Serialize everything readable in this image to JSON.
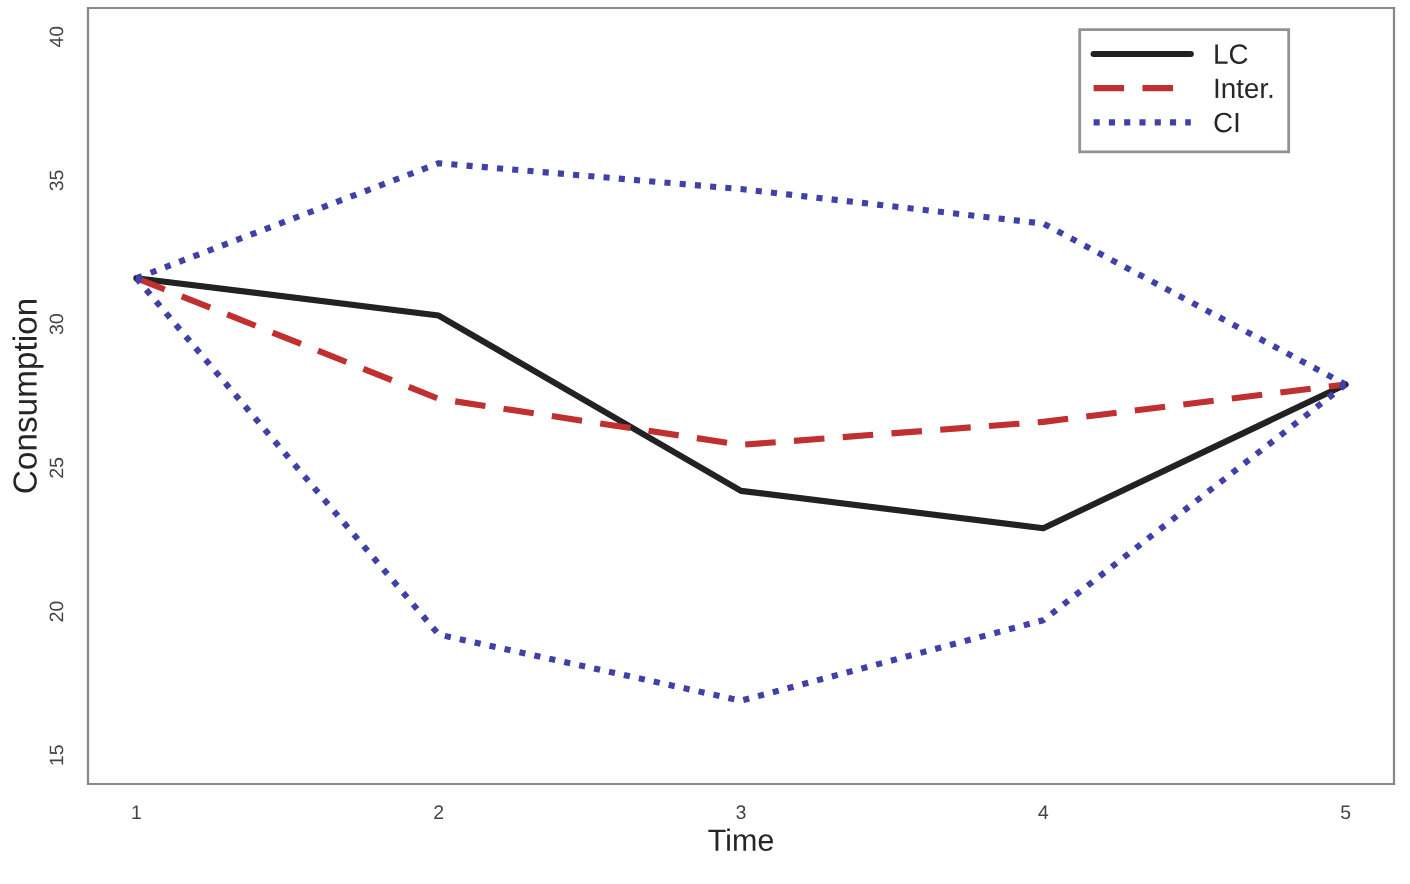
{
  "chart_data": {
    "type": "line",
    "xlabel": "Time",
    "ylabel": "Consumption",
    "x": [
      1,
      2,
      3,
      4,
      5
    ],
    "series": [
      {
        "name": "LC",
        "color": "#222222",
        "line_style": "solid",
        "values": [
          31.6,
          30.3,
          24.2,
          22.9,
          27.9
        ]
      },
      {
        "name": "Inter.",
        "color": "#c03030",
        "line_style": "dashed",
        "values": [
          31.6,
          27.4,
          25.8,
          26.6,
          27.9
        ]
      },
      {
        "name": "CI",
        "color": "#4040a8",
        "line_style": "dotted",
        "values": [
          31.6,
          35.6,
          34.7,
          33.5,
          27.9
        ]
      },
      {
        "color": "#4040a8",
        "line_style": "dotted",
        "values": [
          31.6,
          19.2,
          16.9,
          19.7,
          27.9
        ]
      }
    ],
    "xlim": [
      0.84,
      5.16
    ],
    "xticks": [
      1,
      2,
      3,
      4,
      5
    ],
    "ylim": [
      14,
      41
    ],
    "yticks": [
      15,
      20,
      25,
      30,
      35,
      40
    ],
    "grid": false,
    "legend": "top right",
    "marker": "none"
  }
}
